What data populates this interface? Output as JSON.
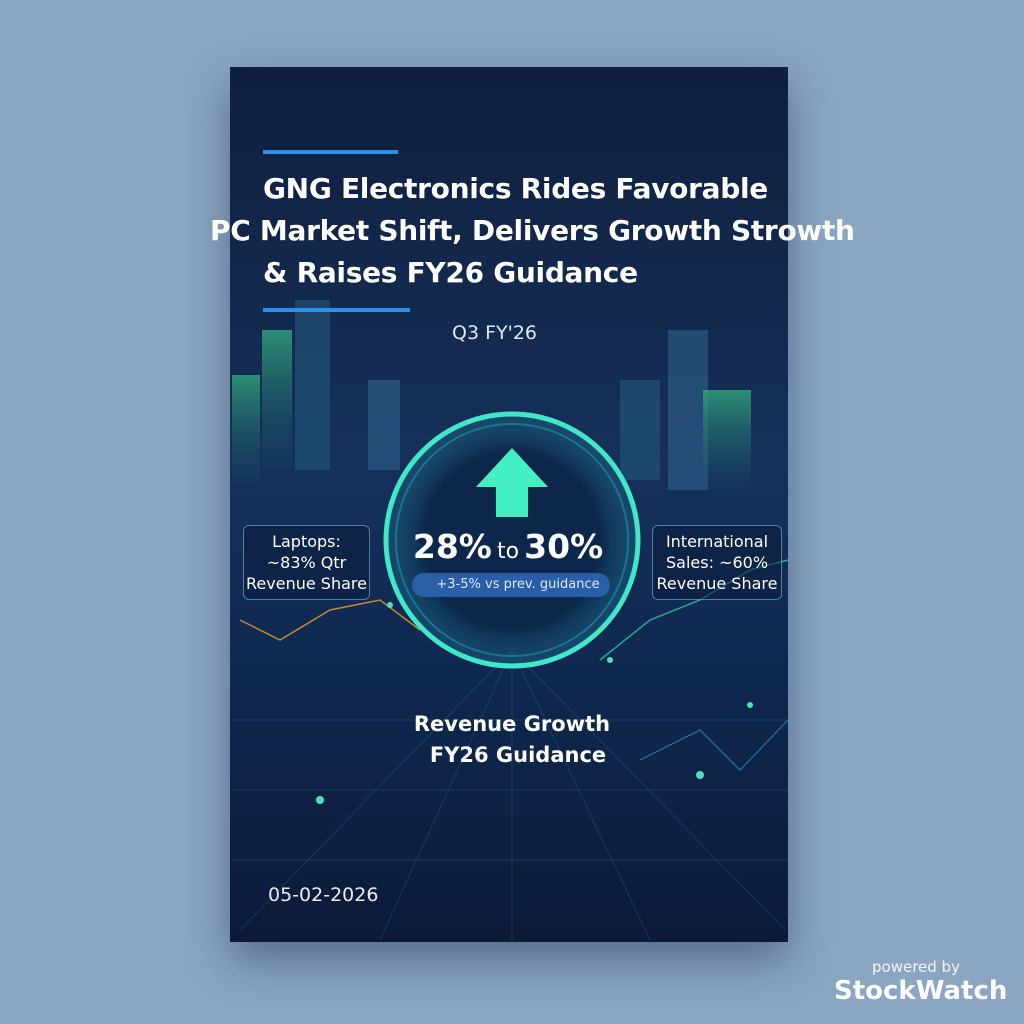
{
  "poster": {
    "title_lines": [
      "GNG Electronics Rides Favorable",
      "PC Market Shift, Delivers Growth Strowth",
      "& Raises FY26 Guidance"
    ],
    "period": "Q3 FY'26",
    "guidance_range": [
      "28%",
      "to",
      "30%"
    ],
    "badge": "+3-5% vs prev. guidance",
    "left_callout": [
      "Laptops:",
      "~83% Qtr",
      "Revenue Share"
    ],
    "right_callout": [
      "International",
      "Sales: ~60%",
      "Revenue Share"
    ],
    "metric_label": [
      "Revenue Growth",
      "FY26 Guidance"
    ],
    "date": "05-02-2026"
  },
  "footer": {
    "powered": "powered by",
    "brand": "StockWatch"
  }
}
